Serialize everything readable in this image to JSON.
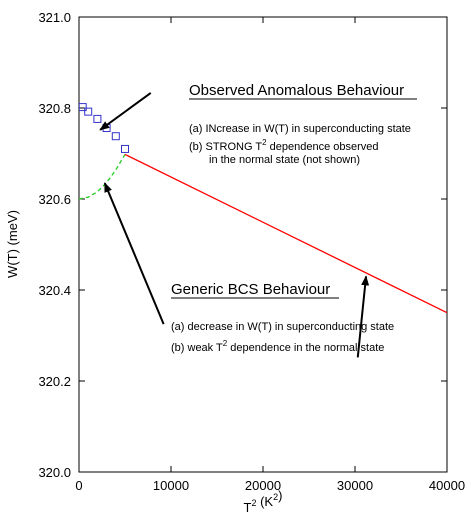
{
  "chart_data": {
    "type": "scatter",
    "xlabel": "T^2 (K^2)",
    "ylabel": "W(T) (meV)",
    "xlim": [
      0,
      40000
    ],
    "ylim": [
      320.0,
      321.0
    ],
    "x_ticks": [
      0,
      10000,
      20000,
      30000,
      40000
    ],
    "y_ticks": [
      320.0,
      320.2,
      320.4,
      320.6,
      320.8,
      321.0
    ],
    "x_tick_labels": [
      "0",
      "10000",
      "20000",
      "30000",
      "40000"
    ],
    "y_tick_labels": [
      "320.0",
      "320.2",
      "320.4",
      "320.6",
      "320.8",
      "321.0"
    ],
    "grid": false,
    "series": [
      {
        "kind": "markers",
        "marker": "open-square",
        "color": "#3333cc",
        "points": [
          [
            400,
            320.802
          ],
          [
            1000,
            320.792
          ],
          [
            2000,
            320.776
          ],
          [
            3000,
            320.756
          ],
          [
            4000,
            320.738
          ],
          [
            5000,
            320.71
          ]
        ]
      },
      {
        "kind": "dashed-line",
        "color": "#22cc22",
        "points": [
          [
            0,
            320.6
          ],
          [
            1000,
            320.604
          ],
          [
            2000,
            320.616
          ],
          [
            3000,
            320.636
          ],
          [
            4000,
            320.664
          ],
          [
            5000,
            320.698
          ]
        ]
      },
      {
        "kind": "line",
        "color": "#ff0000",
        "points": [
          [
            5000,
            320.698
          ],
          [
            40000,
            320.35
          ]
        ]
      }
    ],
    "annotations": {
      "observed": {
        "heading": "Observed Anomalous Behaviour",
        "line_a": "(a) INcrease in W(T) in superconducting state",
        "line_b_pre": "(b) STRONG T",
        "line_b_sup": "2",
        "line_b_post": " dependence observed",
        "line_c": "in the normal state (not shown)"
      },
      "generic": {
        "heading": "Generic BCS Behaviour",
        "line_a": "(a) decrease in W(T) in superconducting state",
        "line_b_pre": "(b) weak T",
        "line_b_sup": "2",
        "line_b_post": " dependence in the normal state"
      },
      "arrows": [
        {
          "name": "observed-arrow",
          "from": [
            7800,
            320.833
          ],
          "to": [
            2300,
            320.752
          ]
        },
        {
          "name": "generic-arrow-to-green",
          "from": [
            9200,
            320.325
          ],
          "to": [
            2800,
            320.635
          ]
        },
        {
          "name": "generic-arrow-to-red",
          "from": [
            30300,
            320.252
          ],
          "to": [
            31200,
            320.43
          ]
        }
      ]
    }
  }
}
